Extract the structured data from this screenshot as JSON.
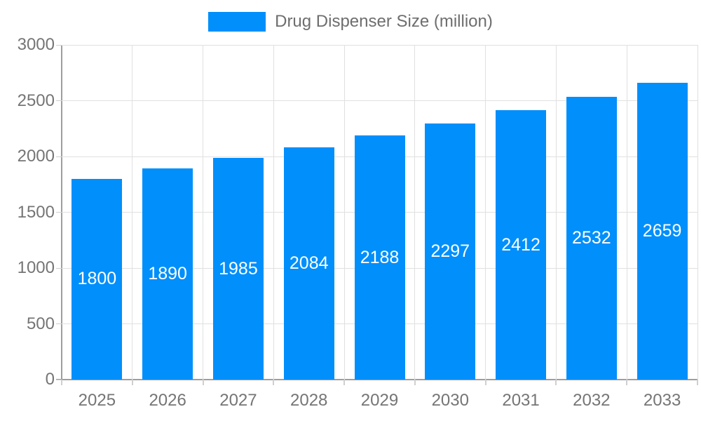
{
  "chart_data": {
    "type": "bar",
    "title": "",
    "legend_label": "Drug Dispenser Size (million)",
    "legend_position": "top",
    "categories": [
      "2025",
      "2026",
      "2027",
      "2028",
      "2029",
      "2030",
      "2031",
      "2032",
      "2033"
    ],
    "series": [
      {
        "name": "Drug Dispenser Size (million)",
        "values": [
          1800,
          1890,
          1985,
          2084,
          2188,
          2297,
          2412,
          2532,
          2659
        ]
      }
    ],
    "value_labels_shown": true,
    "xlabel": "",
    "ylabel": "",
    "ylim": [
      0,
      3000
    ],
    "yticks": [
      0,
      500,
      1000,
      1500,
      2000,
      2500,
      3000
    ],
    "grid": "on",
    "colors": {
      "bar": "#008FFB",
      "grid_line": "#e0e0e0",
      "axis_line": "#9e9e9e",
      "tick": "#cfcfcf",
      "axis_text": "#757575",
      "legend_text": "#6e6e6e",
      "value_text": "#ffffff",
      "background": "#ffffff"
    }
  }
}
